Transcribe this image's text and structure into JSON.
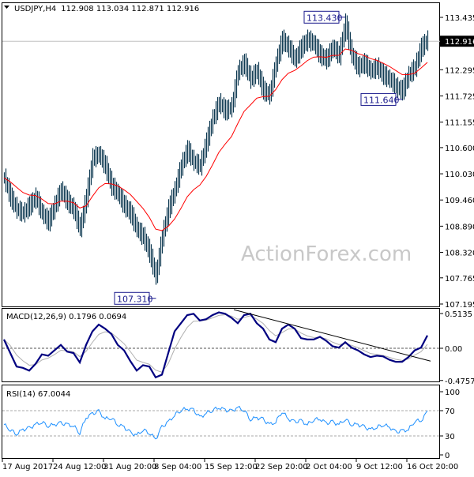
{
  "header": {
    "symbol": "USDJPY,H4",
    "ohlc": "112.908 113.034 112.871 112.916"
  },
  "watermark": "ActionForex.com",
  "colors": {
    "bars": "#0f3a52",
    "ma": "#ff0000",
    "macd": "#000080",
    "signal": "#b0b0b0",
    "rsi": "#1e90ff",
    "trendline": "#000000"
  },
  "chart_data": [
    {
      "type": "bar",
      "title": "USDJPY,H4",
      "yticks": [
        "113.435",
        "112.295",
        "111.725",
        "111.155",
        "110.600",
        "110.030",
        "109.460",
        "108.890",
        "108.320",
        "107.765",
        "107.195"
      ],
      "ylim": [
        107.195,
        113.435
      ],
      "current_price": "112.916",
      "annotations": [
        {
          "label": "113.430",
          "value": 113.43,
          "index": 54
        },
        {
          "label": "111.640",
          "value": 111.64,
          "index": 63
        },
        {
          "label": "107.310",
          "value": 107.31,
          "index": 24
        }
      ],
      "close": [
        109.94,
        109.52,
        109.26,
        109.17,
        109.34,
        109.52,
        109.17,
        108.99,
        109.34,
        109.68,
        109.43,
        109.26,
        108.83,
        109.52,
        110.37,
        110.46,
        110.2,
        109.77,
        109.6,
        109.34,
        109.17,
        108.83,
        108.66,
        108.31,
        107.8,
        108.66,
        109.26,
        109.68,
        110.2,
        110.55,
        110.29,
        110.2,
        110.72,
        111.23,
        111.58,
        111.4,
        111.49,
        112.27,
        112.44,
        112.09,
        112.27,
        111.84,
        111.75,
        112.44,
        112.95,
        112.78,
        112.52,
        112.78,
        112.95,
        112.87,
        112.61,
        112.52,
        112.78,
        112.61,
        113.3,
        112.61,
        112.35,
        112.44,
        112.27,
        112.35,
        112.18,
        112.09,
        111.92,
        111.84,
        112.18,
        112.35,
        112.78,
        112.95
      ],
      "ma_series": "red moving average"
    },
    {
      "type": "line",
      "title": "MACD(12,26,9) 0.1796 0.0694",
      "yticks": [
        "0.5135",
        "0.00",
        "-0.4757"
      ],
      "macd": [
        0.13,
        -0.07,
        -0.27,
        -0.29,
        -0.33,
        -0.23,
        -0.09,
        -0.11,
        -0.03,
        0.05,
        -0.05,
        -0.07,
        -0.21,
        0.05,
        0.25,
        0.35,
        0.29,
        0.21,
        0.05,
        -0.03,
        -0.19,
        -0.33,
        -0.25,
        -0.27,
        -0.43,
        -0.39,
        -0.07,
        0.25,
        0.37,
        0.49,
        0.51,
        0.41,
        0.43,
        0.49,
        0.53,
        0.51,
        0.45,
        0.37,
        0.49,
        0.51,
        0.37,
        0.29,
        0.13,
        0.09,
        0.29,
        0.35,
        0.29,
        0.15,
        0.13,
        0.13,
        0.17,
        0.11,
        0.03,
        0.01,
        0.09,
        0.01,
        -0.03,
        -0.09,
        -0.13,
        -0.11,
        -0.12,
        -0.17,
        -0.2,
        -0.2,
        -0.13,
        -0.03,
        0.01,
        0.19
      ],
      "trendline": {
        "from_index": 36,
        "from": 0.57,
        "to_index": 67,
        "to": -0.19
      }
    },
    {
      "type": "line",
      "title": "RSI(14) 67.0044",
      "yticks": [
        "100",
        "70",
        "30",
        "0"
      ],
      "levels": [
        70,
        30
      ],
      "ylim": [
        0,
        100
      ],
      "rsi": [
        48,
        40,
        33,
        40,
        42,
        48,
        52,
        46,
        48,
        50,
        48,
        46,
        35,
        59,
        65,
        69,
        57,
        59,
        48,
        44,
        35,
        31,
        40,
        35,
        25,
        44,
        52,
        63,
        71,
        73,
        71,
        59,
        66,
        71,
        75,
        71,
        69,
        75,
        71,
        56,
        59,
        56,
        48,
        52,
        69,
        57,
        52,
        54,
        48,
        56,
        57,
        50,
        52,
        48,
        57,
        48,
        48,
        44,
        40,
        44,
        48,
        44,
        36,
        38,
        40,
        54,
        54,
        68
      ]
    }
  ],
  "xticks": [
    "17 Aug 2017",
    "24 Aug 12:00",
    "31 Aug 20:00",
    "8 Sep 04:00",
    "15 Sep 12:00",
    "22 Sep 20:00",
    "2 Oct 04:00",
    "9 Oct 12:00",
    "16 Oct 20:00"
  ]
}
